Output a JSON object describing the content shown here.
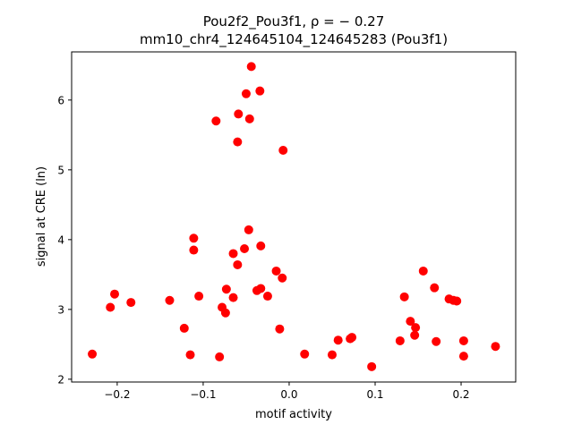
{
  "chart_data": {
    "type": "scatter",
    "title": "Pou2f2_Pou3f1, ρ = − 0.27",
    "subtitle": "mm10_chr4_124645104_124645283 (Pou3f1)",
    "xlabel": "motif activity",
    "ylabel": "signal at CRE (ln)",
    "xlim": [
      -0.253,
      0.2635
    ],
    "ylim": [
      1.96,
      6.69
    ],
    "xticks": [
      -0.2,
      -0.1,
      0.0,
      0.1,
      0.2
    ],
    "xtick_labels": [
      "−0.2",
      "−0.1",
      "0.0",
      "0.1",
      "0.2"
    ],
    "yticks": [
      2,
      3,
      4,
      5,
      6
    ],
    "ytick_labels": [
      "2",
      "3",
      "4",
      "5",
      "6"
    ],
    "grid": false,
    "marker_color": "#ff0000",
    "points": [
      [
        -0.229,
        2.36
      ],
      [
        -0.208,
        3.03
      ],
      [
        -0.203,
        3.22
      ],
      [
        -0.184,
        3.1
      ],
      [
        -0.139,
        3.13
      ],
      [
        -0.122,
        2.73
      ],
      [
        -0.115,
        2.35
      ],
      [
        -0.111,
        4.02
      ],
      [
        -0.111,
        3.85
      ],
      [
        -0.105,
        3.19
      ],
      [
        -0.085,
        5.7
      ],
      [
        -0.081,
        2.32
      ],
      [
        -0.078,
        3.03
      ],
      [
        -0.074,
        2.95
      ],
      [
        -0.073,
        3.29
      ],
      [
        -0.065,
        3.17
      ],
      [
        -0.065,
        3.8
      ],
      [
        -0.06,
        3.64
      ],
      [
        -0.06,
        5.4
      ],
      [
        -0.059,
        5.8
      ],
      [
        -0.052,
        3.87
      ],
      [
        -0.05,
        6.09
      ],
      [
        -0.047,
        4.14
      ],
      [
        -0.046,
        5.73
      ],
      [
        -0.044,
        6.48
      ],
      [
        -0.0375,
        3.27
      ],
      [
        -0.034,
        6.13
      ],
      [
        -0.033,
        3.3
      ],
      [
        -0.033,
        3.91
      ],
      [
        -0.025,
        3.19
      ],
      [
        -0.015,
        3.55
      ],
      [
        -0.011,
        2.72
      ],
      [
        -0.008,
        3.45
      ],
      [
        -0.007,
        5.28
      ],
      [
        0.018,
        2.36
      ],
      [
        0.05,
        2.35
      ],
      [
        0.057,
        2.56
      ],
      [
        0.071,
        2.58
      ],
      [
        0.073,
        2.6
      ],
      [
        0.096,
        2.18
      ],
      [
        0.129,
        2.55
      ],
      [
        0.134,
        3.18
      ],
      [
        0.141,
        2.83
      ],
      [
        0.146,
        2.63
      ],
      [
        0.147,
        2.74
      ],
      [
        0.156,
        3.55
      ],
      [
        0.169,
        3.31
      ],
      [
        0.171,
        2.54
      ],
      [
        0.186,
        3.15
      ],
      [
        0.191,
        3.13
      ],
      [
        0.195,
        3.12
      ],
      [
        0.203,
        2.55
      ],
      [
        0.203,
        2.33
      ],
      [
        0.24,
        2.47
      ]
    ]
  }
}
